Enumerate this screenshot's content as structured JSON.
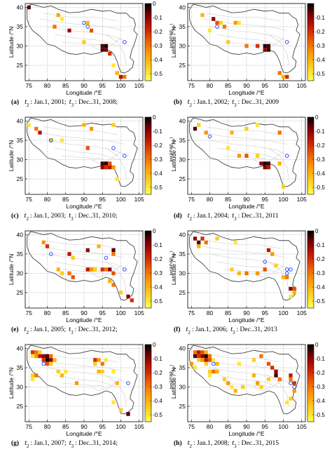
{
  "figure": {
    "color_range": [
      -0.55,
      0
    ],
    "colorbar_label": "log(ΔP/ΔP",
    "colorbar_label_sub": "max",
    "colorbar_label_end": ")",
    "colormap": [
      "#ffff4d",
      "#ffd21f",
      "#ffa000",
      "#f06400",
      "#cc2200",
      "#8a0000",
      "#000000"
    ]
  },
  "chart_data": [
    {
      "type": "heatmap",
      "panel_letter": "(a)",
      "caption_t2": ": Jan.1, 2001;",
      "caption_t3": ": Dec..31, 2008;",
      "xlabel": "Longitude /°E",
      "ylabel": "Latitude /°N",
      "xlim": [
        74,
        106
      ],
      "ylim": [
        21,
        41
      ],
      "xticks": [
        75,
        80,
        85,
        90,
        95,
        100,
        105
      ],
      "yticks": [
        25,
        30,
        35,
        40
      ],
      "cbar_ticks": [
        0,
        -0.1,
        -0.2,
        -0.3,
        -0.4,
        -0.5
      ],
      "cells": [
        [
          75,
          40,
          -0.05
        ],
        [
          83,
          38,
          -0.38
        ],
        [
          84,
          37,
          -0.5
        ],
        [
          82,
          35,
          -0.3
        ],
        [
          86,
          34,
          -0.12
        ],
        [
          91,
          36,
          -0.42
        ],
        [
          92,
          34,
          -0.25
        ],
        [
          90,
          31,
          -0.45
        ],
        [
          95,
          30,
          -0.05
        ],
        [
          96,
          30,
          -0.02
        ],
        [
          95,
          29,
          -0.05
        ],
        [
          96,
          29,
          -0.08
        ],
        [
          97,
          28,
          -0.2
        ],
        [
          98,
          25,
          -0.5
        ],
        [
          99,
          23,
          -0.4
        ],
        [
          100,
          22,
          -0.15
        ],
        [
          101,
          22,
          -0.3
        ]
      ],
      "markers": [
        [
          90,
          36
        ],
        [
          101,
          31
        ],
        [
          91,
          35
        ]
      ]
    },
    {
      "type": "heatmap",
      "panel_letter": "(b)",
      "caption_t2": ": Jan.1, 2002;",
      "caption_t3": ": Dec..31, 2009",
      "xlabel": "Longitude /°E",
      "ylabel": "Latitude /°N",
      "xlim": [
        74,
        106
      ],
      "ylim": [
        21,
        41
      ],
      "xticks": [
        75,
        80,
        85,
        90,
        95,
        100,
        105
      ],
      "yticks": [
        25,
        30,
        35,
        40
      ],
      "cbar_ticks": [
        -0.1,
        -0.2,
        -0.3,
        -0.4,
        -0.5
      ],
      "cells": [
        [
          78,
          38,
          -0.4
        ],
        [
          81,
          37,
          -0.1
        ],
        [
          82,
          36,
          -0.25
        ],
        [
          83,
          36,
          -0.45
        ],
        [
          84,
          35,
          -0.3
        ],
        [
          80,
          34,
          -0.5
        ],
        [
          87,
          36,
          -0.35
        ],
        [
          88,
          36,
          -0.5
        ],
        [
          85,
          31,
          -0.45
        ],
        [
          90,
          30,
          -0.3
        ],
        [
          93,
          30,
          -0.2
        ],
        [
          95,
          30,
          -0.02
        ],
        [
          96,
          30,
          -0.05
        ],
        [
          95,
          29,
          -0.1
        ],
        [
          96,
          29,
          -0.04
        ],
        [
          99,
          23,
          -0.3
        ],
        [
          100,
          22,
          -0.4
        ],
        [
          101,
          22,
          -0.2
        ]
      ],
      "markers": [
        [
          82,
          35
        ],
        [
          101,
          31
        ]
      ]
    },
    {
      "type": "heatmap",
      "panel_letter": "(c)",
      "caption_t2": ": Jan.1, 2003;",
      "caption_t3": ": Dec..31, 2010;",
      "xlabel": "Longitude /°E",
      "ylabel": "Latitude /°N",
      "xlim": [
        74,
        106
      ],
      "ylim": [
        21,
        41
      ],
      "xticks": [
        75,
        80,
        85,
        90,
        95,
        100,
        105
      ],
      "yticks": [
        25,
        30,
        35,
        40
      ],
      "cbar_ticks": [
        0,
        -0.1,
        -0.2,
        -0.3,
        -0.4,
        -0.5
      ],
      "cells": [
        [
          75,
          39,
          -0.5
        ],
        [
          77,
          38,
          -0.3
        ],
        [
          78,
          37,
          -0.15
        ],
        [
          81,
          35,
          -0.45
        ],
        [
          84,
          35,
          -0.5
        ],
        [
          91,
          33,
          -0.25
        ],
        [
          90,
          39,
          -0.4
        ],
        [
          92,
          38,
          -0.35
        ],
        [
          98,
          39,
          -0.45
        ],
        [
          95,
          29,
          -0.05
        ],
        [
          96,
          29,
          -0.03
        ],
        [
          95,
          28,
          -0.1
        ],
        [
          96,
          28,
          -0.2
        ],
        [
          97,
          28,
          -0.15
        ],
        [
          98,
          28,
          -0.35
        ],
        [
          97,
          29,
          -0.25
        ],
        [
          99,
          25,
          -0.5
        ]
      ],
      "markers": [
        [
          81,
          35
        ],
        [
          98,
          33
        ],
        [
          101,
          31
        ]
      ]
    },
    {
      "type": "heatmap",
      "panel_letter": "(d)",
      "caption_t2": ": Jan.1, 2004;",
      "caption_t3": ": Dec..31, 2011",
      "xlabel": "Longitude /°E",
      "ylabel": "Latitude /°N",
      "xlim": [
        74,
        106
      ],
      "ylim": [
        21,
        41
      ],
      "xticks": [
        75,
        80,
        85,
        90,
        95,
        100,
        105
      ],
      "yticks": [
        25,
        30,
        35,
        40
      ],
      "cbar_ticks": [
        0,
        -0.1,
        -0.2,
        -0.3,
        -0.4,
        -0.5
      ],
      "cells": [
        [
          76,
          38,
          -0.05
        ],
        [
          77,
          39,
          -0.45
        ],
        [
          79,
          37,
          -0.35
        ],
        [
          86,
          37,
          -0.4
        ],
        [
          90,
          38,
          -0.45
        ],
        [
          93,
          39,
          -0.5
        ],
        [
          99,
          37,
          -0.3
        ],
        [
          85,
          33,
          -0.5
        ],
        [
          88,
          31,
          -0.35
        ],
        [
          90,
          31,
          -0.25
        ],
        [
          93,
          31,
          -0.45
        ],
        [
          94,
          29,
          -0.1
        ],
        [
          95,
          29,
          -0.02
        ],
        [
          96,
          29,
          -0.05
        ],
        [
          95,
          28,
          -0.08
        ],
        [
          96,
          28,
          -0.15
        ],
        [
          99,
          29,
          -0.4
        ],
        [
          100,
          23,
          -0.45
        ]
      ],
      "markers": [
        [
          101,
          31
        ],
        [
          80,
          36
        ]
      ]
    },
    {
      "type": "heatmap",
      "panel_letter": "(e)",
      "caption_t2": ": Jan.1, 2005;",
      "caption_t3": ": Dec..31, 2012;",
      "xlabel": "Longitude /°E",
      "ylabel": "Latitude /°N",
      "xlim": [
        74,
        106
      ],
      "ylim": [
        21,
        41
      ],
      "xticks": [
        75,
        80,
        85,
        90,
        95,
        100,
        105
      ],
      "yticks": [
        25,
        30,
        35,
        40
      ],
      "cbar_ticks": [
        0,
        -0.1,
        -0.2,
        -0.3,
        -0.4,
        -0.5
      ],
      "cells": [
        [
          79,
          38,
          -0.35
        ],
        [
          80,
          37,
          -0.2
        ],
        [
          86,
          35,
          -0.15
        ],
        [
          87,
          34,
          -0.45
        ],
        [
          91,
          36,
          -0.1
        ],
        [
          94,
          37,
          -0.4
        ],
        [
          98,
          36,
          -0.05
        ],
        [
          98,
          35,
          -0.3
        ],
        [
          83,
          31,
          -0.4
        ],
        [
          84,
          30,
          -0.45
        ],
        [
          86,
          30,
          -0.3
        ],
        [
          87,
          29,
          -0.25
        ],
        [
          91,
          31,
          -0.15
        ],
        [
          92,
          31,
          -0.35
        ],
        [
          93,
          31,
          -0.45
        ],
        [
          95,
          31,
          -0.2
        ],
        [
          96,
          31,
          -0.3
        ],
        [
          97,
          31,
          -0.1
        ],
        [
          98,
          30,
          -0.25
        ],
        [
          97,
          28,
          -0.4
        ],
        [
          98,
          27,
          -0.3
        ],
        [
          100,
          25,
          -0.45
        ],
        [
          102,
          24,
          -0.1
        ],
        [
          103,
          23,
          -0.2
        ]
      ],
      "markers": [
        [
          81,
          35
        ],
        [
          96,
          34
        ],
        [
          101,
          31
        ]
      ]
    },
    {
      "type": "heatmap",
      "panel_letter": "(f)",
      "caption_t2": ": Jan.1, 2006;",
      "caption_t3": ": Dec..31, 2013",
      "xlabel": "Longitude /°E",
      "ylabel": "Latitude /°N",
      "xlim": [
        74,
        106
      ],
      "ylim": [
        21,
        41
      ],
      "xticks": [
        75,
        80,
        85,
        90,
        95,
        100,
        105
      ],
      "yticks": [
        25,
        30,
        35,
        40
      ],
      "cbar_ticks": [
        0,
        -0.1,
        -0.2,
        -0.3,
        -0.4,
        -0.5
      ],
      "cells": [
        [
          76,
          39,
          -0.1
        ],
        [
          77,
          38,
          -0.05
        ],
        [
          78,
          39,
          -0.2
        ],
        [
          79,
          38,
          -0.3
        ],
        [
          77,
          37,
          -0.4
        ],
        [
          82,
          39,
          -0.45
        ],
        [
          87,
          38,
          -0.5
        ],
        [
          96,
          36,
          -0.15
        ],
        [
          97,
          35,
          -0.35
        ],
        [
          86,
          31,
          -0.45
        ],
        [
          88,
          30,
          -0.4
        ],
        [
          90,
          30,
          -0.3
        ],
        [
          93,
          30,
          -0.35
        ],
        [
          95,
          31,
          -0.25
        ],
        [
          98,
          32,
          -0.45
        ],
        [
          100,
          29,
          -0.4
        ],
        [
          101,
          29,
          -0.3
        ],
        [
          102,
          26,
          -0.1
        ],
        [
          103,
          26,
          -0.25
        ],
        [
          103,
          25,
          -0.4
        ],
        [
          102,
          24,
          -0.5
        ]
      ],
      "markers": [
        [
          95,
          33
        ],
        [
          101,
          31
        ],
        [
          102,
          31
        ],
        [
          101,
          30
        ]
      ]
    },
    {
      "type": "heatmap",
      "panel_letter": "(g)",
      "caption_t2": ": Jan.1, 2007;",
      "caption_t3": ": Dec..31, 2014;",
      "xlabel": "Longitude /°E",
      "ylabel": "Latitude /°N",
      "xlim": [
        74,
        106
      ],
      "ylim": [
        21,
        41
      ],
      "xticks": [
        75,
        80,
        85,
        90,
        95,
        100,
        105
      ],
      "yticks": [
        25,
        30,
        35,
        40
      ],
      "cbar_ticks": [
        0,
        -0.1,
        -0.2,
        -0.3,
        -0.4,
        -0.5
      ],
      "cells": [
        [
          76,
          39,
          -0.2
        ],
        [
          77,
          39,
          -0.3
        ],
        [
          78,
          39,
          -0.45
        ],
        [
          76,
          38,
          -0.5
        ],
        [
          77,
          38,
          -0.35
        ],
        [
          78,
          38,
          -0.15
        ],
        [
          79,
          38,
          -0.1
        ],
        [
          80,
          38,
          -0.05
        ],
        [
          81,
          38,
          -0.3
        ],
        [
          79,
          37,
          -0.2
        ],
        [
          80,
          37,
          -0.02
        ],
        [
          81,
          37,
          -0.1
        ],
        [
          82,
          37,
          -0.4
        ],
        [
          80,
          36,
          -0.25
        ],
        [
          81,
          36,
          -0.45
        ],
        [
          76,
          33,
          -0.45
        ],
        [
          77,
          33,
          -0.3
        ],
        [
          76,
          32,
          -0.5
        ],
        [
          83,
          34,
          -0.45
        ],
        [
          84,
          33,
          -0.4
        ],
        [
          85,
          34,
          -0.5
        ],
        [
          93,
          37,
          -0.2
        ],
        [
          94,
          37,
          -0.35
        ],
        [
          95,
          36,
          -0.3
        ],
        [
          93,
          36,
          -0.45
        ],
        [
          96,
          37,
          -0.5
        ],
        [
          94,
          34,
          -0.4
        ],
        [
          95,
          34,
          -0.45
        ],
        [
          98,
          34,
          -0.5
        ],
        [
          88,
          31,
          -0.35
        ],
        [
          99,
          31,
          -0.4
        ],
        [
          98,
          26,
          -0.5
        ],
        [
          100,
          24,
          -0.45
        ],
        [
          102,
          23,
          -0.05
        ]
      ],
      "markers": [
        [
          79,
          36
        ],
        [
          102,
          31
        ]
      ]
    },
    {
      "type": "heatmap",
      "panel_letter": "(h)",
      "caption_t2": ": Jan.1, 2008;",
      "caption_t3": ": Dec..31, 2015",
      "xlabel": "Longitude /°E",
      "ylabel": "Latitude /°N",
      "xlim": [
        74,
        106
      ],
      "ylim": [
        21,
        41
      ],
      "xticks": [
        75,
        80,
        85,
        90,
        95,
        100,
        105
      ],
      "yticks": [
        25,
        30,
        35,
        40
      ],
      "cbar_ticks": [
        0,
        -0.1,
        -0.2,
        -0.3,
        -0.4,
        -0.5
      ],
      "cells": [
        [
          76,
          39,
          -0.3
        ],
        [
          77,
          39,
          -0.15
        ],
        [
          78,
          39,
          -0.25
        ],
        [
          79,
          39,
          -0.4
        ],
        [
          76,
          38,
          -0.05
        ],
        [
          77,
          38,
          -0.2
        ],
        [
          78,
          38,
          -0.1
        ],
        [
          79,
          38,
          -0.02
        ],
        [
          80,
          38,
          -0.3
        ],
        [
          77,
          37,
          -0.45
        ],
        [
          78,
          37,
          -0.35
        ],
        [
          79,
          37,
          -0.15
        ],
        [
          80,
          37,
          -0.25
        ],
        [
          81,
          37,
          -0.5
        ],
        [
          82,
          36,
          -0.4
        ],
        [
          79,
          36,
          -0.45
        ],
        [
          75,
          36,
          -0.35
        ],
        [
          76,
          35,
          -0.5
        ],
        [
          80,
          34,
          -0.45
        ],
        [
          81,
          34,
          -0.3
        ],
        [
          82,
          34,
          -0.4
        ],
        [
          80,
          33,
          -0.5
        ],
        [
          84,
          32,
          -0.45
        ],
        [
          85,
          31,
          -0.35
        ],
        [
          86,
          30,
          -0.5
        ],
        [
          87,
          29,
          -0.4
        ],
        [
          89,
          30,
          -0.45
        ],
        [
          88,
          36,
          -0.5
        ],
        [
          92,
          37,
          -0.45
        ],
        [
          94,
          38,
          -0.3
        ],
        [
          96,
          36,
          -0.25
        ],
        [
          97,
          35,
          -0.2
        ],
        [
          98,
          34,
          -0.1
        ],
        [
          98,
          33,
          -0.05
        ],
        [
          99,
          32,
          -0.3
        ],
        [
          96,
          32,
          -0.45
        ],
        [
          92,
          33,
          -0.4
        ],
        [
          93,
          31,
          -0.35
        ],
        [
          94,
          30,
          -0.45
        ],
        [
          102,
          33,
          -0.15
        ],
        [
          102,
          32,
          -0.3
        ],
        [
          103,
          31,
          -0.2
        ],
        [
          103,
          29,
          -0.35
        ],
        [
          102,
          27,
          -0.45
        ],
        [
          101,
          26,
          -0.5
        ]
      ],
      "markers": [
        [
          81,
          36
        ],
        [
          102,
          31
        ],
        [
          103,
          30
        ]
      ]
    }
  ]
}
